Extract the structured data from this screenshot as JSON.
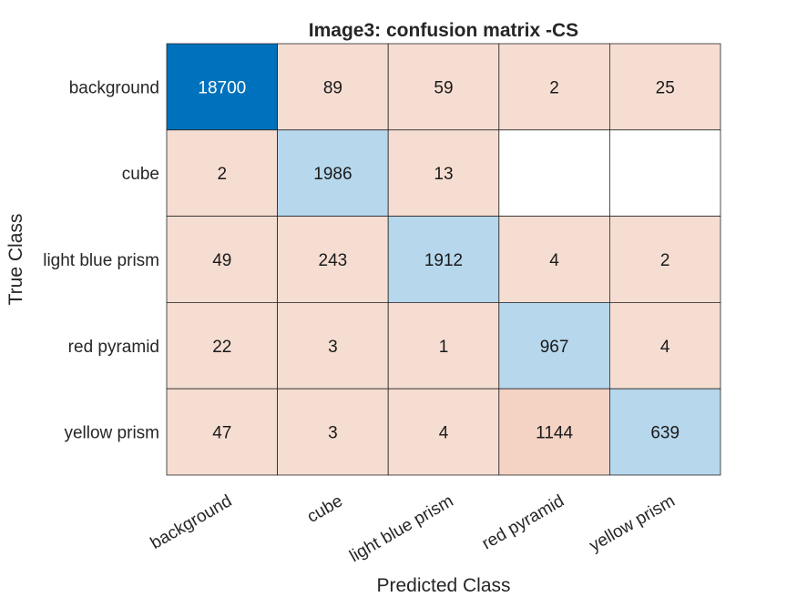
{
  "chart_data": {
    "type": "heatmap",
    "title": "Image3: confusion matrix -CS",
    "xlabel": "Predicted Class",
    "ylabel": "True Class",
    "classes": [
      "background",
      "cube",
      "light blue prism",
      "red pyramid",
      "yellow prism"
    ],
    "x_tick_labels": [
      "background",
      "cube",
      "light blue prism",
      "red pyramid",
      "yellow prism"
    ],
    "y_tick_labels": [
      "background",
      "cube",
      "light blue prism",
      "red pyramid",
      "yellow prism"
    ],
    "matrix": [
      [
        18700,
        89,
        59,
        2,
        25
      ],
      [
        2,
        1986,
        13,
        null,
        null
      ],
      [
        49,
        243,
        1912,
        4,
        2
      ],
      [
        22,
        3,
        1,
        967,
        4
      ],
      [
        47,
        3,
        4,
        1144,
        639
      ]
    ],
    "colors": {
      "diagonal_strong": "#0072bd",
      "diagonal_light": "#b6d7ec",
      "off_diagonal": "#f6ddd2",
      "off_diagonal_strong": "#f4d3c4",
      "empty": "#ffffff",
      "grid_line": "#262626"
    }
  }
}
